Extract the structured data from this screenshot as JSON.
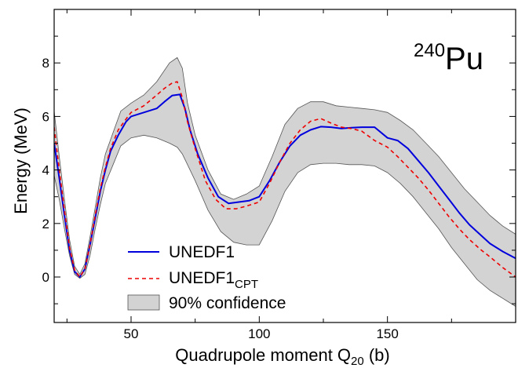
{
  "chart_data": {
    "type": "line",
    "nuclide": {
      "mass": "240",
      "element": "Pu"
    },
    "xlabel": {
      "main": "Quadrupole moment Q",
      "sub": "20",
      "unit": " (b)"
    },
    "ylabel": "Energy (MeV)",
    "xlim": [
      20,
      200
    ],
    "ylim": [
      -1.7,
      10
    ],
    "xticks": [
      50,
      100,
      150
    ],
    "yticks": [
      0,
      2,
      4,
      6,
      8
    ],
    "grid": false,
    "legend_position": "bottom-left",
    "series": [
      {
        "name": "UNEDF1",
        "style": "solid",
        "color": "#0000dd",
        "points": [
          [
            20,
            5.0
          ],
          [
            22,
            3.7
          ],
          [
            24,
            2.3
          ],
          [
            26,
            1.0
          ],
          [
            28,
            0.2
          ],
          [
            30,
            0.0
          ],
          [
            32,
            0.3
          ],
          [
            34,
            1.2
          ],
          [
            36,
            2.2
          ],
          [
            38,
            3.2
          ],
          [
            40,
            4.0
          ],
          [
            42,
            4.7
          ],
          [
            45,
            5.3
          ],
          [
            48,
            5.8
          ],
          [
            50,
            6.0
          ],
          [
            55,
            6.15
          ],
          [
            60,
            6.3
          ],
          [
            63,
            6.55
          ],
          [
            66,
            6.78
          ],
          [
            69,
            6.82
          ],
          [
            71,
            6.3
          ],
          [
            73,
            5.5
          ],
          [
            76,
            4.6
          ],
          [
            80,
            3.7
          ],
          [
            84,
            3.0
          ],
          [
            88,
            2.75
          ],
          [
            92,
            2.8
          ],
          [
            96,
            2.85
          ],
          [
            100,
            3.0
          ],
          [
            104,
            3.6
          ],
          [
            108,
            4.3
          ],
          [
            112,
            4.9
          ],
          [
            116,
            5.3
          ],
          [
            120,
            5.5
          ],
          [
            124,
            5.62
          ],
          [
            128,
            5.6
          ],
          [
            132,
            5.55
          ],
          [
            136,
            5.58
          ],
          [
            140,
            5.6
          ],
          [
            145,
            5.6
          ],
          [
            150,
            5.2
          ],
          [
            154,
            5.1
          ],
          [
            158,
            4.8
          ],
          [
            162,
            4.35
          ],
          [
            166,
            3.9
          ],
          [
            170,
            3.4
          ],
          [
            174,
            2.9
          ],
          [
            178,
            2.4
          ],
          [
            182,
            1.95
          ],
          [
            186,
            1.6
          ],
          [
            190,
            1.25
          ],
          [
            195,
            0.95
          ],
          [
            200,
            0.7
          ]
        ]
      },
      {
        "name": "UNEDF1",
        "name_sub": "CPT",
        "style": "dashed",
        "color": "#ee0000",
        "points": [
          [
            20,
            5.6
          ],
          [
            22,
            4.0
          ],
          [
            24,
            2.5
          ],
          [
            26,
            1.1
          ],
          [
            28,
            0.25
          ],
          [
            30,
            0.0
          ],
          [
            32,
            0.3
          ],
          [
            34,
            1.2
          ],
          [
            36,
            2.3
          ],
          [
            38,
            3.3
          ],
          [
            40,
            4.1
          ],
          [
            42,
            4.8
          ],
          [
            45,
            5.5
          ],
          [
            48,
            5.9
          ],
          [
            50,
            6.15
          ],
          [
            55,
            6.4
          ],
          [
            60,
            6.8
          ],
          [
            63,
            7.05
          ],
          [
            66,
            7.25
          ],
          [
            68,
            7.3
          ],
          [
            70,
            6.7
          ],
          [
            72,
            5.8
          ],
          [
            75,
            4.8
          ],
          [
            79,
            3.6
          ],
          [
            83,
            2.9
          ],
          [
            87,
            2.55
          ],
          [
            91,
            2.55
          ],
          [
            95,
            2.65
          ],
          [
            100,
            2.8
          ],
          [
            104,
            3.5
          ],
          [
            108,
            4.3
          ],
          [
            112,
            5.0
          ],
          [
            116,
            5.5
          ],
          [
            120,
            5.82
          ],
          [
            124,
            5.92
          ],
          [
            128,
            5.75
          ],
          [
            132,
            5.6
          ],
          [
            136,
            5.55
          ],
          [
            140,
            5.45
          ],
          [
            145,
            5.1
          ],
          [
            150,
            4.85
          ],
          [
            154,
            4.5
          ],
          [
            158,
            4.1
          ],
          [
            162,
            3.7
          ],
          [
            166,
            3.25
          ],
          [
            170,
            2.75
          ],
          [
            174,
            2.25
          ],
          [
            178,
            1.8
          ],
          [
            182,
            1.4
          ],
          [
            186,
            1.05
          ],
          [
            190,
            0.75
          ],
          [
            195,
            0.35
          ],
          [
            200,
            0.0
          ]
        ]
      }
    ],
    "band": {
      "name": "90% confidence",
      "color": "#d3d3d3",
      "x": [
        20,
        22,
        24,
        26,
        28,
        30,
        32,
        34,
        36,
        38,
        40,
        43,
        46,
        50,
        55,
        60,
        65,
        68,
        70,
        72,
        75,
        80,
        85,
        90,
        95,
        100,
        105,
        110,
        115,
        120,
        125,
        130,
        135,
        140,
        145,
        150,
        155,
        160,
        165,
        170,
        175,
        180,
        185,
        190,
        195,
        200
      ],
      "upper": [
        6.2,
        4.5,
        2.9,
        1.4,
        0.4,
        0.1,
        0.5,
        1.5,
        2.6,
        3.7,
        4.6,
        5.4,
        6.2,
        6.5,
        6.8,
        7.3,
        8.0,
        8.2,
        7.8,
        6.5,
        5.3,
        4.0,
        3.1,
        2.9,
        3.1,
        3.4,
        4.5,
        5.7,
        6.3,
        6.55,
        6.55,
        6.4,
        6.35,
        6.3,
        6.25,
        6.15,
        5.85,
        5.5,
        5.0,
        4.5,
        3.9,
        3.3,
        2.8,
        2.3,
        1.9,
        1.6
      ],
      "lower": [
        3.8,
        2.9,
        1.8,
        0.8,
        0.1,
        -0.05,
        0.1,
        0.8,
        1.8,
        2.7,
        3.5,
        4.2,
        4.9,
        5.2,
        5.3,
        5.2,
        5.0,
        4.85,
        4.6,
        4.2,
        3.6,
        2.5,
        1.7,
        1.3,
        1.2,
        1.2,
        2.1,
        3.2,
        3.9,
        4.2,
        4.25,
        4.25,
        4.2,
        4.2,
        4.15,
        3.9,
        3.5,
        3.0,
        2.4,
        1.8,
        1.1,
        0.5,
        -0.1,
        -0.5,
        -0.8,
        -1.1
      ]
    }
  }
}
